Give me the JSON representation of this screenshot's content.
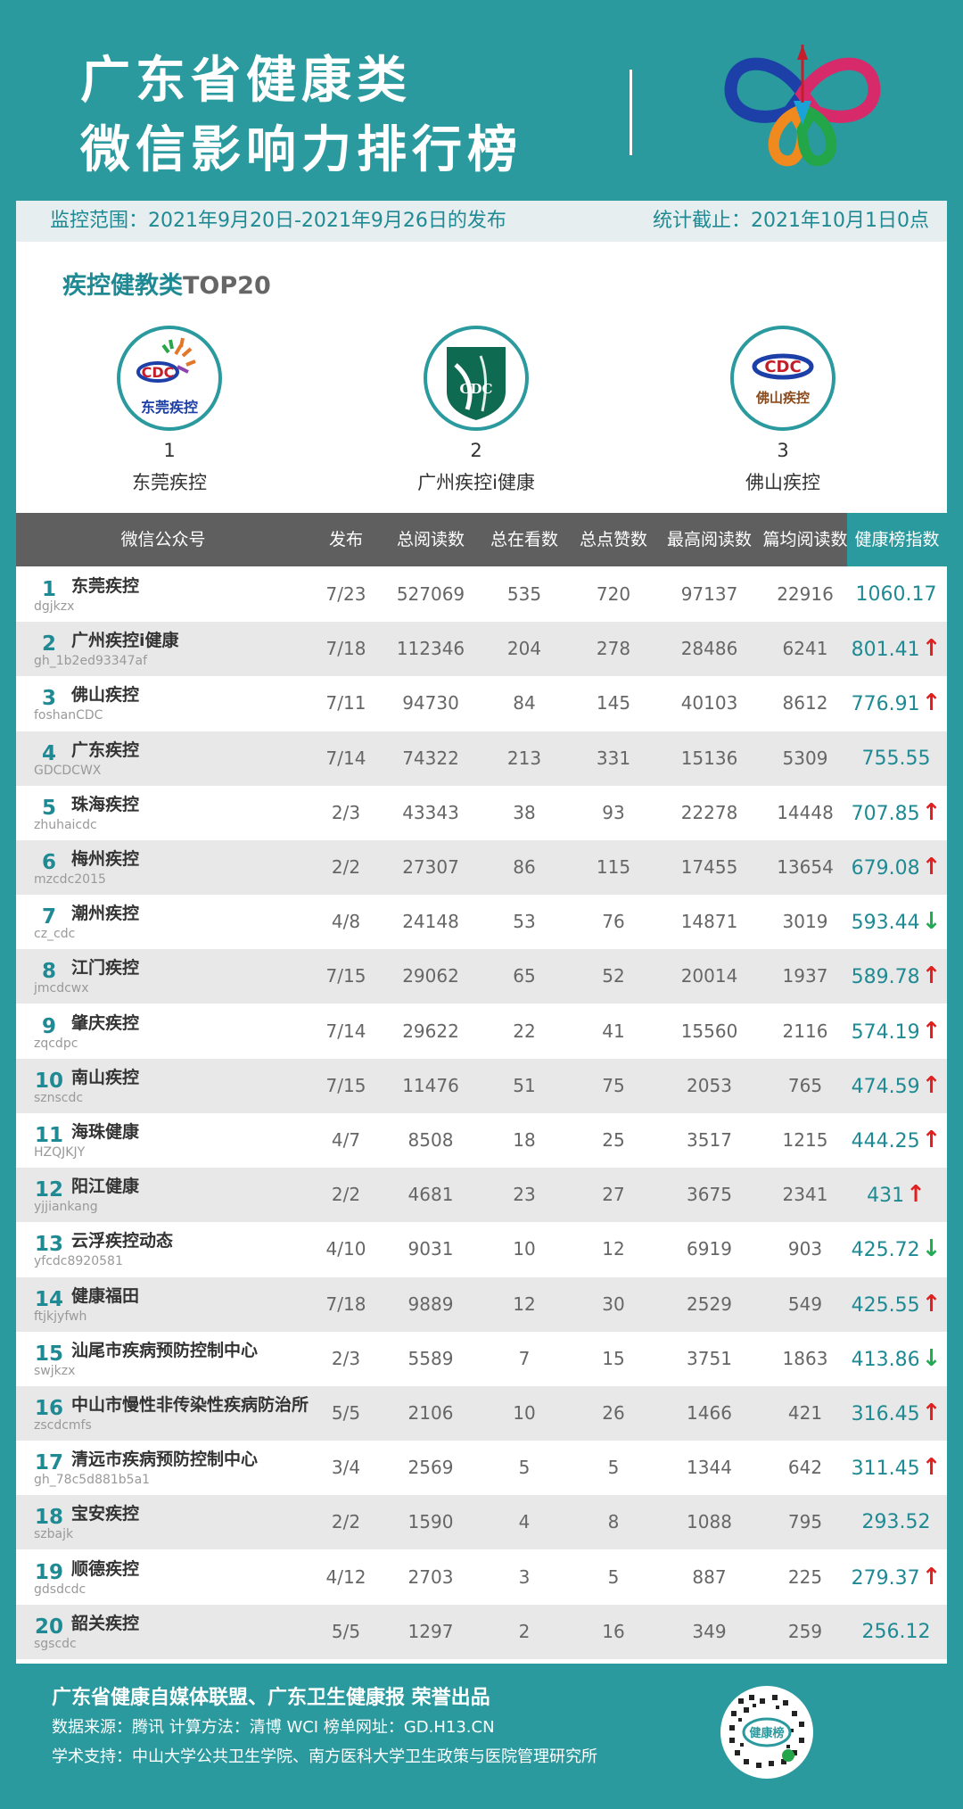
{
  "header": {
    "title_line1": "广东省健康类",
    "title_line2": "微信影响力排行榜"
  },
  "info": {
    "range": "监控范围：2021年9月20日-2021年9月26日的发布",
    "cutoff": "统计截止：2021年10月1日0点"
  },
  "section": {
    "title_cn": "疾控健教类",
    "title_top": "TOP20"
  },
  "podium": [
    {
      "rank": "1",
      "name": "东莞疾控",
      "logo_text": "东莞疾控"
    },
    {
      "rank": "2",
      "name": "广州疾控i健康",
      "logo_text": "CDC"
    },
    {
      "rank": "3",
      "name": "佛山疾控",
      "logo_text": "佛山疾控"
    }
  ],
  "table": {
    "headers": [
      "微信公众号",
      "发布",
      "总阅读数",
      "总在看数",
      "总点赞数",
      "最高阅读数",
      "篇均阅读数",
      "健康榜指数"
    ],
    "rows": [
      {
        "rank": "1",
        "name": "东莞疾控",
        "id": "dgjkzx",
        "pub": "7/23",
        "reads": "527069",
        "looking": "535",
        "likes": "720",
        "max": "97137",
        "avg": "22916",
        "index": "1060.17",
        "trend": ""
      },
      {
        "rank": "2",
        "name": "广州疾控i健康",
        "id": "gh_1b2ed93347af",
        "pub": "7/18",
        "reads": "112346",
        "looking": "204",
        "likes": "278",
        "max": "28486",
        "avg": "6241",
        "index": "801.41",
        "trend": "up"
      },
      {
        "rank": "3",
        "name": "佛山疾控",
        "id": "foshanCDC",
        "pub": "7/11",
        "reads": "94730",
        "looking": "84",
        "likes": "145",
        "max": "40103",
        "avg": "8612",
        "index": "776.91",
        "trend": "up"
      },
      {
        "rank": "4",
        "name": "广东疾控",
        "id": "GDCDCWX",
        "pub": "7/14",
        "reads": "74322",
        "looking": "213",
        "likes": "331",
        "max": "15136",
        "avg": "5309",
        "index": "755.55",
        "trend": ""
      },
      {
        "rank": "5",
        "name": "珠海疾控",
        "id": "zhuhaicdc",
        "pub": "2/3",
        "reads": "43343",
        "looking": "38",
        "likes": "93",
        "max": "22278",
        "avg": "14448",
        "index": "707.85",
        "trend": "up"
      },
      {
        "rank": "6",
        "name": "梅州疾控",
        "id": "mzcdc2015",
        "pub": "2/2",
        "reads": "27307",
        "looking": "86",
        "likes": "115",
        "max": "17455",
        "avg": "13654",
        "index": "679.08",
        "trend": "up"
      },
      {
        "rank": "7",
        "name": "潮州疾控",
        "id": "cz_cdc",
        "pub": "4/8",
        "reads": "24148",
        "looking": "53",
        "likes": "76",
        "max": "14871",
        "avg": "3019",
        "index": "593.44",
        "trend": "down"
      },
      {
        "rank": "8",
        "name": "江门疾控",
        "id": "jmcdcwx",
        "pub": "7/15",
        "reads": "29062",
        "looking": "65",
        "likes": "52",
        "max": "20014",
        "avg": "1937",
        "index": "589.78",
        "trend": "up"
      },
      {
        "rank": "9",
        "name": "肇庆疾控",
        "id": "zqcdpc",
        "pub": "7/14",
        "reads": "29622",
        "looking": "22",
        "likes": "41",
        "max": "15560",
        "avg": "2116",
        "index": "574.19",
        "trend": "up"
      },
      {
        "rank": "10",
        "name": "南山疾控",
        "id": "sznscdc",
        "pub": "7/15",
        "reads": "11476",
        "looking": "51",
        "likes": "75",
        "max": "2053",
        "avg": "765",
        "index": "474.59",
        "trend": "up"
      },
      {
        "rank": "11",
        "name": "海珠健康",
        "id": "HZQJKJY",
        "pub": "4/7",
        "reads": "8508",
        "looking": "18",
        "likes": "25",
        "max": "3517",
        "avg": "1215",
        "index": "444.25",
        "trend": "up"
      },
      {
        "rank": "12",
        "name": "阳江健康",
        "id": "yjjiankang",
        "pub": "2/2",
        "reads": "4681",
        "looking": "23",
        "likes": "27",
        "max": "3675",
        "avg": "2341",
        "index": "431",
        "trend": "up"
      },
      {
        "rank": "13",
        "name": "云浮疾控动态",
        "id": "yfcdc8920581",
        "pub": "4/10",
        "reads": "9031",
        "looking": "10",
        "likes": "12",
        "max": "6919",
        "avg": "903",
        "index": "425.72",
        "trend": "down"
      },
      {
        "rank": "14",
        "name": "健康福田",
        "id": "ftjkjyfwh",
        "pub": "7/18",
        "reads": "9889",
        "looking": "12",
        "likes": "30",
        "max": "2529",
        "avg": "549",
        "index": "425.55",
        "trend": "up"
      },
      {
        "rank": "15",
        "name": "汕尾市疾病预防控制中心",
        "id": "swjkzx",
        "pub": "2/3",
        "reads": "5589",
        "looking": "7",
        "likes": "15",
        "max": "3751",
        "avg": "1863",
        "index": "413.86",
        "trend": "down"
      },
      {
        "rank": "16",
        "name": "中山市慢性非传染性疾病防治所",
        "id": "zscdcmfs",
        "pub": "5/5",
        "reads": "2106",
        "looking": "10",
        "likes": "26",
        "max": "1466",
        "avg": "421",
        "index": "316.45",
        "trend": "up"
      },
      {
        "rank": "17",
        "name": "清远市疾病预防控制中心",
        "id": "gh_78c5d881b5a1",
        "pub": "3/4",
        "reads": "2569",
        "looking": "5",
        "likes": "5",
        "max": "1344",
        "avg": "642",
        "index": "311.45",
        "trend": "up"
      },
      {
        "rank": "18",
        "name": "宝安疾控",
        "id": "szbajk",
        "pub": "2/2",
        "reads": "1590",
        "looking": "4",
        "likes": "8",
        "max": "1088",
        "avg": "795",
        "index": "293.52",
        "trend": ""
      },
      {
        "rank": "19",
        "name": "顺德疾控",
        "id": "gdsdcdc",
        "pub": "4/12",
        "reads": "2703",
        "looking": "3",
        "likes": "5",
        "max": "887",
        "avg": "225",
        "index": "279.37",
        "trend": "up"
      },
      {
        "rank": "20",
        "name": "韶关疾控",
        "id": "sgscdc",
        "pub": "5/5",
        "reads": "1297",
        "looking": "2",
        "likes": "16",
        "max": "349",
        "avg": "259",
        "index": "256.12",
        "trend": ""
      }
    ]
  },
  "footer": {
    "line1": "广东省健康自媒体联盟、广东卫生健康报 荣誉出品",
    "line2": "数据来源：腾讯   计算方法：清博 WCI   榜单网址：GD.H13.CN",
    "line3": "学术支持：中山大学公共卫生学院、南方医科大学卫生政策与医院管理研究所",
    "qr_label": "健康榜"
  },
  "colors": {
    "teal": "#2a9a9f",
    "header_gray": "#5f5f5f",
    "up": "#e02020",
    "down": "#22aa55"
  }
}
